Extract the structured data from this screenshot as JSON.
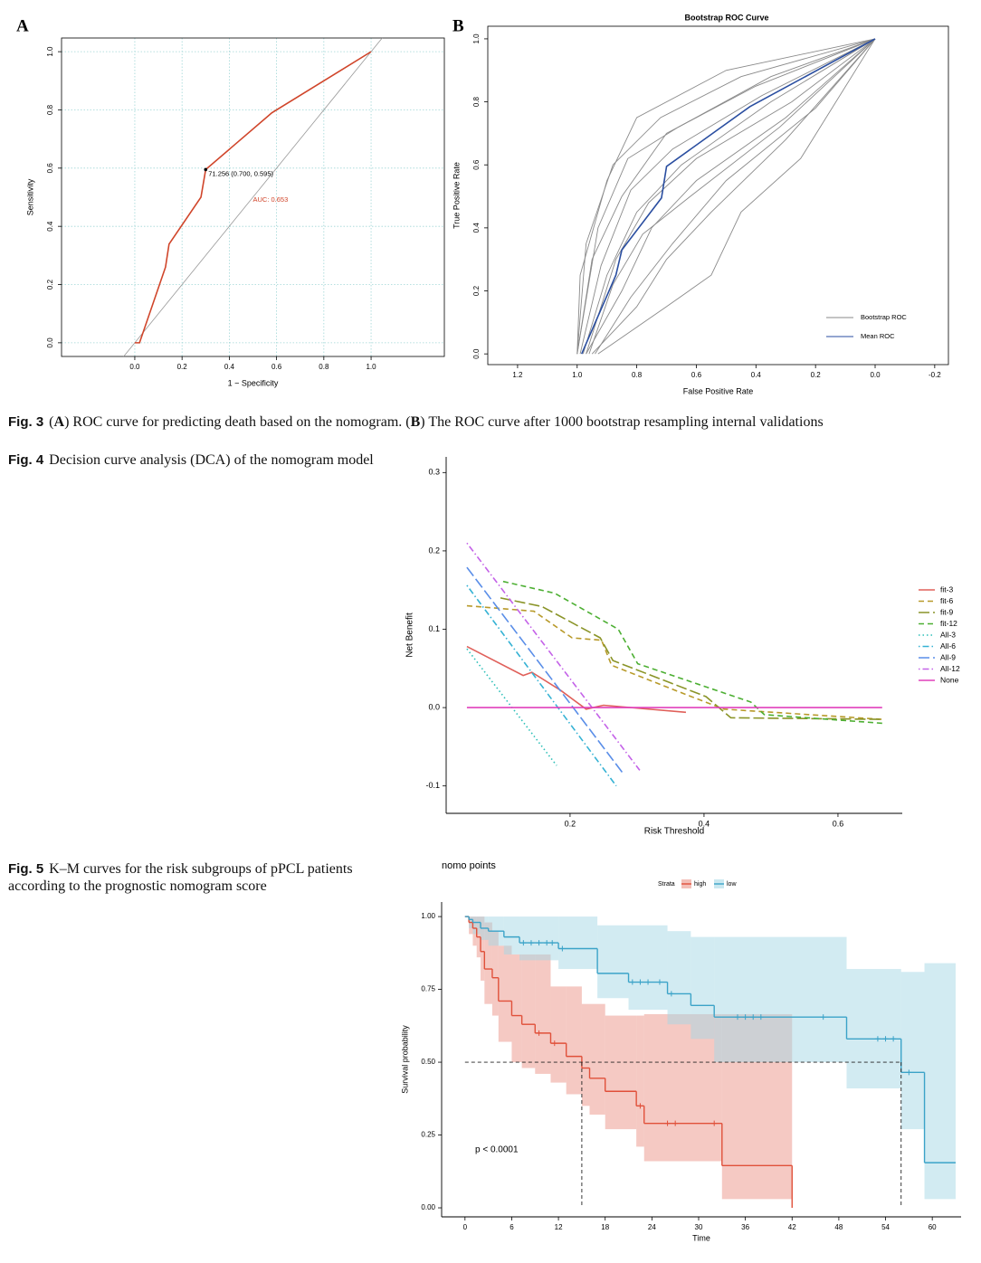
{
  "captions": [
    {
      "label": "Fig. 3",
      "parts": [
        "(",
        "A",
        ") ROC curve for predicting death based on the nomogram. (",
        "B",
        ") The ROC curve after 1000 bootstrap resampling internal validations"
      ]
    },
    {
      "label": "Fig. 4",
      "text": "Decision curve analysis (DCA) of the nomogram model"
    },
    {
      "label": "Fig. 5",
      "text": "K–M curves for the risk subgroups of pPCL patients according to the prognostic nomogram score"
    }
  ],
  "chart_data": [
    {
      "type": "line",
      "panel": "A",
      "frame": "box",
      "grid": true,
      "reference": "diagonal",
      "xlabel": "1 − Specificity",
      "ylabel": "Sensitivity",
      "xlim": [
        -0.31,
        1.31
      ],
      "ylim": [
        -0.047,
        1.047
      ],
      "xticks": [
        {
          "value": 0,
          "label": "0.0"
        },
        0.2,
        0.4,
        0.6,
        0.8,
        {
          "value": 1,
          "label": "1.0"
        }
      ],
      "yticks": [
        {
          "value": 0,
          "label": "0.0"
        },
        0.2,
        0.4,
        0.6,
        0.8,
        {
          "value": 1,
          "label": "1.0"
        }
      ],
      "series": [
        {
          "color": "#d0452a",
          "dash": "solid",
          "x": [
            0,
            0.02,
            0.13,
            0.145,
            0.28,
            0.3,
            0.58,
            1
          ],
          "values": [
            0,
            0,
            0.26,
            0.339,
            0.5,
            0.595,
            0.79,
            1
          ]
        }
      ],
      "annotations": [
        {
          "text": "71.256 (0.700, 0.595)",
          "x": 0.3,
          "y": 0.595,
          "marker": true,
          "color": "#000000"
        },
        {
          "text": "AUC: 0.653",
          "x": 0.5,
          "y": 0.49,
          "color": "#d0452a"
        }
      ]
    },
    {
      "type": "line",
      "panel": "B",
      "frame": "box",
      "grid": false,
      "title": "Bootstrap ROC Curve",
      "xlabel": "False Positive Rate",
      "ylabel": "True Positive Rate",
      "xlim": [
        1.3,
        -0.246
      ],
      "ylim": [
        -0.034,
        1.04
      ],
      "xticks": [
        1.2,
        {
          "value": 1,
          "label": "1.0"
        },
        0.8,
        0.6,
        0.4,
        0.2,
        {
          "value": 0,
          "label": "0.0"
        },
        -0.2
      ],
      "yticks": [
        {
          "value": 0,
          "label": "0.0"
        },
        0.2,
        0.4,
        0.6,
        0.8,
        {
          "value": 1,
          "label": "1.0"
        }
      ],
      "legend": "bottomright",
      "series": [
        {
          "name": "Bootstrap ROC",
          "color": "#8a8a8a",
          "dash": "solid",
          "curves": [
            {
              "x": [
                1,
                0.99,
                0.9,
                0.8,
                0.5,
                0
              ],
              "values": [
                0,
                0.25,
                0.55,
                0.75,
                0.9,
                1
              ]
            },
            {
              "x": [
                1,
                0.95,
                0.85,
                0.7,
                0.4,
                0
              ],
              "values": [
                0,
                0.3,
                0.5,
                0.7,
                0.85,
                1
              ]
            },
            {
              "x": [
                0.98,
                0.9,
                0.8,
                0.65,
                0.35,
                0
              ],
              "values": [
                0,
                0.25,
                0.45,
                0.6,
                0.8,
                1
              ]
            },
            {
              "x": [
                0.97,
                0.85,
                0.75,
                0.6,
                0.3,
                0
              ],
              "values": [
                0,
                0.2,
                0.4,
                0.55,
                0.75,
                1
              ]
            },
            {
              "x": [
                0.95,
                0.8,
                0.7,
                0.55,
                0.3,
                0
              ],
              "values": [
                0,
                0.15,
                0.3,
                0.45,
                0.68,
                1
              ]
            },
            {
              "x": [
                0.93,
                0.7,
                0.55,
                0.45,
                0.25,
                0
              ],
              "values": [
                0,
                0.15,
                0.25,
                0.45,
                0.62,
                1
              ]
            },
            {
              "x": [
                1,
                0.97,
                0.88,
                0.72,
                0.45,
                0
              ],
              "values": [
                0,
                0.35,
                0.6,
                0.75,
                0.88,
                1
              ]
            },
            {
              "x": [
                0.99,
                0.92,
                0.82,
                0.68,
                0.38,
                0
              ],
              "values": [
                0,
                0.28,
                0.52,
                0.65,
                0.82,
                1
              ]
            },
            {
              "x": [
                0.96,
                0.88,
                0.78,
                0.62,
                0.32,
                0
              ],
              "values": [
                0,
                0.22,
                0.38,
                0.5,
                0.72,
                1
              ]
            },
            {
              "x": [
                0.94,
                0.82,
                0.68,
                0.5,
                0.2,
                0
              ],
              "values": [
                0,
                0.18,
                0.35,
                0.55,
                0.78,
                1
              ]
            },
            {
              "x": [
                1,
                0.93,
                0.83,
                0.66,
                0.35,
                0
              ],
              "values": [
                0,
                0.4,
                0.62,
                0.72,
                0.88,
                1
              ]
            },
            {
              "x": [
                0.97,
                0.87,
                0.76,
                0.6,
                0.28,
                0
              ],
              "values": [
                0,
                0.3,
                0.48,
                0.62,
                0.8,
                1
              ]
            }
          ]
        },
        {
          "name": "Mean ROC",
          "color": "#2a4ea0",
          "dash": "solid",
          "x": [
            0.985,
            0.87,
            0.85,
            0.717,
            0.7,
            0.42,
            0
          ],
          "values": [
            0,
            0.25,
            0.33,
            0.495,
            0.595,
            0.785,
            1
          ]
        }
      ]
    },
    {
      "type": "line",
      "frame": "axes",
      "grid": false,
      "xlabel": "Risk Threshold",
      "ylabel": "Net Benefit",
      "xlim": [
        0.015,
        0.696
      ],
      "ylim": [
        -0.135,
        0.32
      ],
      "xticks": [
        0.2,
        0.4,
        0.6
      ],
      "yticks": [
        -0.1,
        {
          "value": 0,
          "label": "0.0"
        },
        0.1,
        0.2,
        0.3
      ],
      "legend": "right",
      "series": [
        {
          "name": "fit-3",
          "color": "#e0605a",
          "dash": "solid",
          "x": [
            0.046,
            0.13,
            0.143,
            0.186,
            0.224,
            0.25,
            0.373
          ],
          "values": [
            0.078,
            0.041,
            0.045,
            0.022,
            -0.002,
            0.003,
            -0.006
          ]
        },
        {
          "name": "fit-6",
          "color": "#b89a2a",
          "dash": "dashed",
          "x": [
            0.046,
            0.146,
            0.203,
            0.247,
            0.262,
            0.372,
            0.43,
            0.666
          ],
          "values": [
            0.13,
            0.123,
            0.089,
            0.086,
            0.054,
            0.017,
            -0.002,
            -0.015
          ]
        },
        {
          "name": "fit-9",
          "color": "#8a9428",
          "dash": "longdash",
          "x": [
            0.096,
            0.158,
            0.245,
            0.264,
            0.403,
            0.44,
            0.666
          ],
          "values": [
            0.14,
            0.129,
            0.089,
            0.06,
            0.014,
            -0.013,
            -0.015
          ]
        },
        {
          "name": "fit-12",
          "color": "#4caf32",
          "dash": "dashed",
          "x": [
            0.1,
            0.177,
            0.272,
            0.301,
            0.47,
            0.49,
            0.666
          ],
          "values": [
            0.161,
            0.146,
            0.1,
            0.056,
            0.007,
            -0.009,
            -0.02
          ]
        },
        {
          "name": "All-3",
          "color": "#2cbfb8",
          "dash": "dotted",
          "x": [
            0.046,
            0.18
          ],
          "values": [
            0.075,
            -0.074
          ]
        },
        {
          "name": "All-6",
          "color": "#35b2d4",
          "dash": "dotdash",
          "x": [
            0.046,
            0.269
          ],
          "values": [
            0.156,
            -0.1
          ]
        },
        {
          "name": "All-9",
          "color": "#5a8ee8",
          "dash": "longdash",
          "x": [
            0.046,
            0.28
          ],
          "values": [
            0.179,
            -0.085
          ]
        },
        {
          "name": "All-12",
          "color": "#c462e8",
          "dash": "dotdash",
          "x": [
            0.046,
            0.304
          ],
          "values": [
            0.21,
            -0.08
          ]
        },
        {
          "name": "None",
          "color": "#e040bc",
          "dash": "solid",
          "x": [
            0.046,
            0.666
          ],
          "values": [
            0,
            0
          ]
        }
      ]
    },
    {
      "type": "step",
      "frame": "axes",
      "grid": false,
      "title": "nomo points",
      "xlabel": "Time",
      "ylabel": "Survival probability",
      "xlim": [
        -3,
        63.7
      ],
      "ylim": [
        -0.031,
        1.05
      ],
      "xticks": [
        0,
        6,
        12,
        18,
        24,
        30,
        36,
        42,
        48,
        54,
        60
      ],
      "yticks": [
        {
          "value": 0,
          "label": "0.00"
        },
        0.25,
        {
          "value": 0.5,
          "label": "0.50"
        },
        0.75,
        {
          "value": 1,
          "label": "1.00"
        }
      ],
      "legend": "top",
      "legend_title": "Strata",
      "annotations": [
        {
          "text": "p < 0.0001",
          "x": 1.3,
          "y": 0.2,
          "color": "#000000"
        }
      ],
      "median": {
        "y": 0.5,
        "times": [
          15,
          56
        ]
      },
      "series": [
        {
          "name": "high",
          "color": "#e0503a",
          "fill": "#eb9488",
          "x": [
            0,
            0.5,
            1,
            1.5,
            2,
            2.5,
            3.5,
            4.3,
            6,
            7.3,
            9,
            11,
            13,
            15,
            16,
            18,
            22,
            23,
            33,
            42
          ],
          "values": [
            1,
            0.98,
            0.96,
            0.93,
            0.88,
            0.82,
            0.79,
            0.71,
            0.66,
            0.63,
            0.6,
            0.565,
            0.52,
            0.48,
            0.445,
            0.4,
            0.35,
            0.29,
            0.145,
            0
          ],
          "upper": [
            1,
            1,
            1,
            1,
            1,
            0.98,
            0.95,
            0.9,
            0.87,
            0.87,
            0.87,
            0.76,
            0.76,
            0.7,
            0.7,
            0.66,
            0.66,
            0.665,
            0.665,
            0
          ],
          "lower": [
            1,
            0.94,
            0.9,
            0.86,
            0.78,
            0.7,
            0.66,
            0.57,
            0.5,
            0.48,
            0.46,
            0.43,
            0.39,
            0.35,
            0.32,
            0.27,
            0.21,
            0.16,
            0.03,
            0
          ],
          "censor": [
            9.5,
            11.5,
            22.5,
            26,
            27,
            32
          ]
        },
        {
          "name": "low",
          "color": "#3ba3c8",
          "fill": "#a6d8e6",
          "x": [
            0,
            0.5,
            1,
            2,
            3,
            5,
            7,
            12,
            17,
            21,
            26,
            29,
            32,
            49,
            56,
            59,
            63
          ],
          "values": [
            1,
            0.99,
            0.98,
            0.96,
            0.95,
            0.93,
            0.91,
            0.89,
            0.805,
            0.775,
            0.735,
            0.695,
            0.655,
            0.58,
            0.465,
            0.155,
            0.155
          ],
          "upper": [
            1,
            1,
            1,
            1,
            1,
            1,
            1,
            1,
            0.97,
            0.97,
            0.95,
            0.93,
            0.93,
            0.82,
            0.81,
            0.84,
            0.84
          ],
          "lower": [
            1,
            0.96,
            0.94,
            0.92,
            0.9,
            0.87,
            0.85,
            0.82,
            0.72,
            0.68,
            0.63,
            0.58,
            0.5,
            0.41,
            0.27,
            0.03,
            0.03
          ],
          "censor": [
            7.5,
            8.5,
            9.5,
            10.5,
            11.2,
            12.5,
            21.5,
            22.5,
            23.5,
            25,
            26.5,
            35,
            36,
            37,
            38,
            46,
            53,
            54,
            55,
            57
          ]
        }
      ]
    }
  ]
}
